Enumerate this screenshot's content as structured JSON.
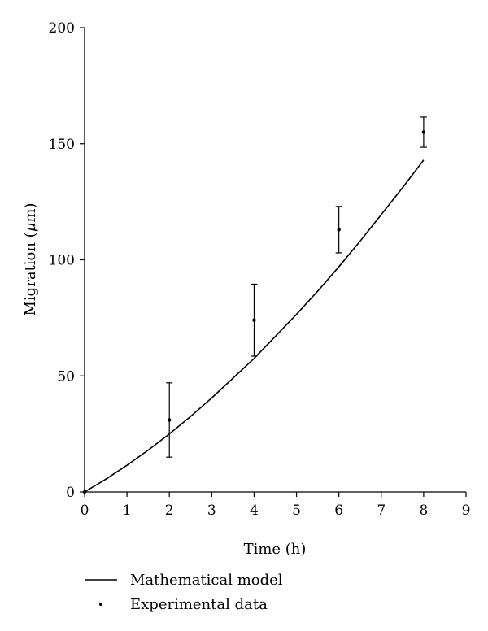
{
  "chart_data": {
    "type": "line",
    "xlabel": "Time (h)",
    "ylabel_main": "Migration (",
    "ylabel_mu": "μ",
    "ylabel_tail": "m)",
    "xlim": [
      0,
      9
    ],
    "ylim": [
      0,
      200
    ],
    "xticks": [
      "0",
      "1",
      "2",
      "3",
      "4",
      "5",
      "6",
      "7",
      "8",
      "9"
    ],
    "yticks": [
      "0",
      "50",
      "100",
      "150",
      "200"
    ],
    "grid": false,
    "legend_placement": "bottom-left",
    "series": [
      {
        "name": "Mathematical model",
        "kind": "line",
        "x": [
          0,
          0.5,
          1,
          1.5,
          2,
          2.5,
          3,
          3.5,
          4,
          4.5,
          5,
          5.5,
          6,
          6.5,
          7,
          7.5,
          8
        ],
        "y": [
          0,
          5.5,
          11.5,
          18,
          25,
          32.5,
          40.5,
          49,
          57.5,
          67,
          76.5,
          86.5,
          97,
          108,
          119.5,
          131,
          143
        ]
      },
      {
        "name": "Experimental data",
        "kind": "points",
        "x": [
          0,
          2,
          4,
          6,
          8
        ],
        "y": [
          0,
          31,
          74,
          113,
          155
        ],
        "error": [
          0,
          16,
          15.5,
          10,
          6.5
        ]
      }
    ]
  }
}
